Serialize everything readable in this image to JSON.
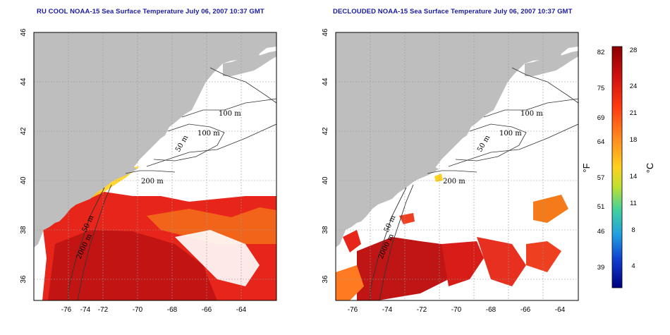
{
  "panels": [
    {
      "title": "RU COOL NOAA-15 Sea Surface Temperature July 06, 2007 10:37 GMT",
      "contour_labels": [
        "100 m",
        "100 m",
        "50 m",
        "200 m",
        "50 m",
        "2000 m"
      ]
    },
    {
      "title": "DECLOUDED NOAA-15 Sea Surface Temperature July 06, 2007 10:37 GMT",
      "contour_labels": [
        "100 m",
        "100 m",
        "50 m",
        "200 m",
        "50 m",
        "2000 m"
      ]
    }
  ],
  "axes": {
    "lon_ticks": [
      "-76",
      "-74",
      "-72",
      "-70",
      "-68",
      "-66",
      "-64"
    ],
    "lat_ticks": [
      "46",
      "44",
      "42",
      "40",
      "38",
      "36"
    ]
  },
  "colorbar": {
    "fahrenheit_ticks": [
      "82",
      "75",
      "69",
      "64",
      "57",
      "51",
      "46",
      "39"
    ],
    "celsius_ticks": [
      "28",
      "24",
      "21",
      "18",
      "14",
      "11",
      "8",
      "4"
    ],
    "fahrenheit_unit": "°F",
    "celsius_unit": "°C",
    "colors": [
      "#8b0000",
      "#cc1010",
      "#ff3a10",
      "#ff8a20",
      "#ffd020",
      "#c0e030",
      "#40d0a0",
      "#20a0e0",
      "#1040d0",
      "#000080"
    ]
  },
  "colors": {
    "land": "#bebebe",
    "cloud": "#ffffff",
    "warm": "#e8251a",
    "hot": "#b01010",
    "medium": "#f57a1a",
    "cool": "#ffd21e"
  }
}
